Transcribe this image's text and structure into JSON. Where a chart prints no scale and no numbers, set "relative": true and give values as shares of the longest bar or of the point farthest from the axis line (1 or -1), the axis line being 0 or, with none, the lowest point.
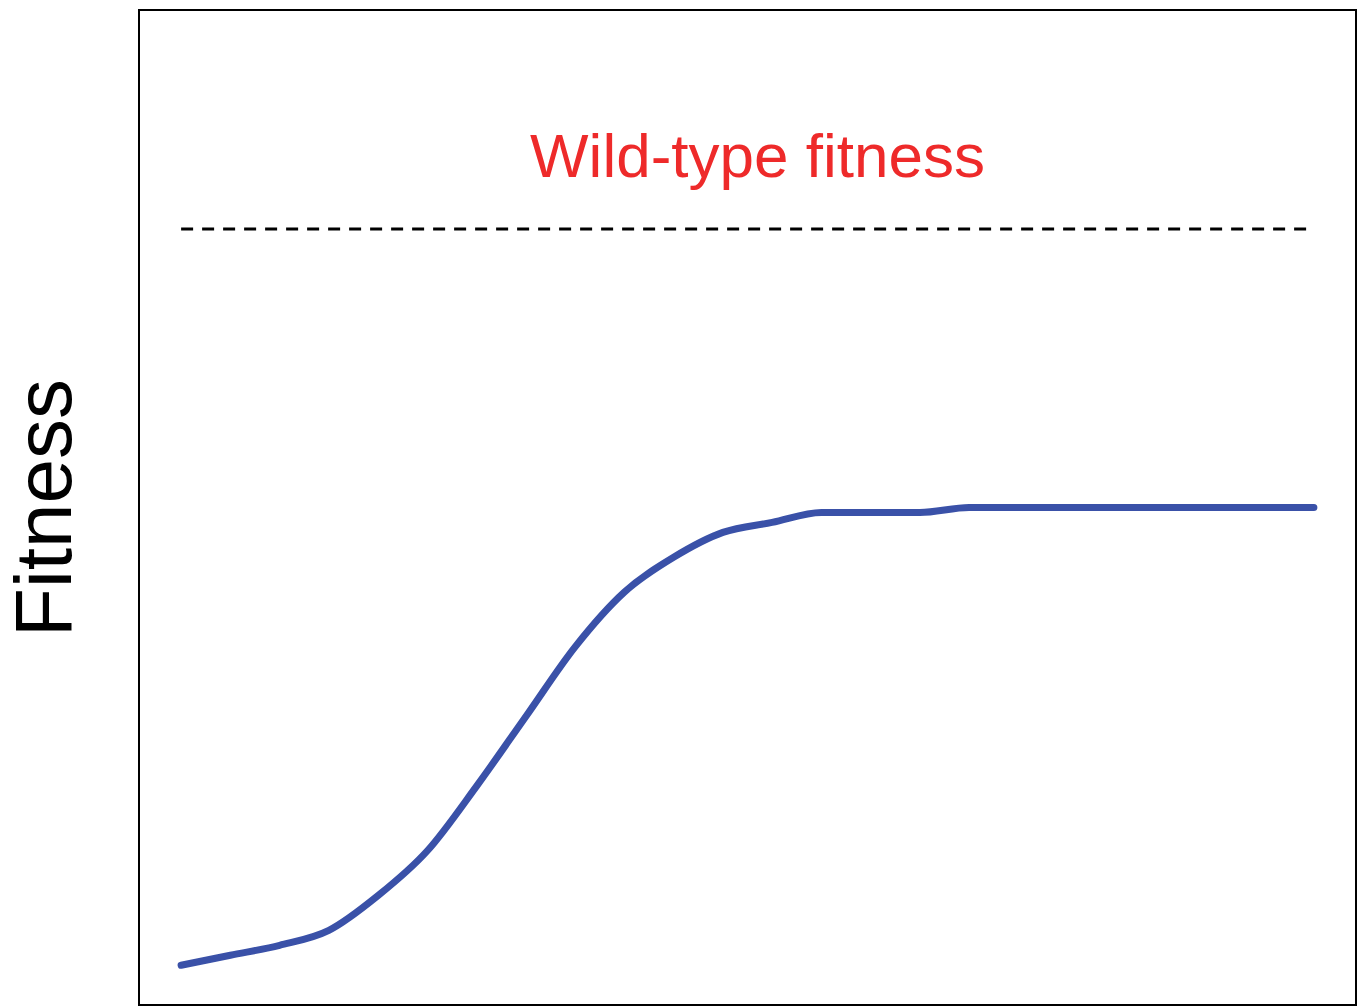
{
  "chart_data": {
    "type": "line",
    "ylabel": "Fitness",
    "relative": true,
    "categories": [
      null,
      null,
      null,
      null,
      null,
      null,
      null,
      null,
      null,
      null,
      null,
      null,
      null,
      null,
      null,
      null,
      null,
      null,
      null,
      null,
      null,
      null,
      null,
      null
    ],
    "series": [
      {
        "color": "#3a51a8",
        "values": [
          0.08,
          0.1,
          0.12,
          0.15,
          0.22,
          0.31,
          0.44,
          0.58,
          0.72,
          0.83,
          0.9,
          0.95,
          0.97,
          0.99,
          0.99,
          0.99,
          1.0,
          1.0,
          1.0,
          1.0,
          1.0,
          1.0,
          1.0,
          1.0
        ]
      }
    ],
    "ref_lines": [
      {
        "axis": "y",
        "value": 1.56,
        "label": "Wild-type fitness",
        "color": "#000000",
        "line_style": "dashed"
      }
    ]
  }
}
